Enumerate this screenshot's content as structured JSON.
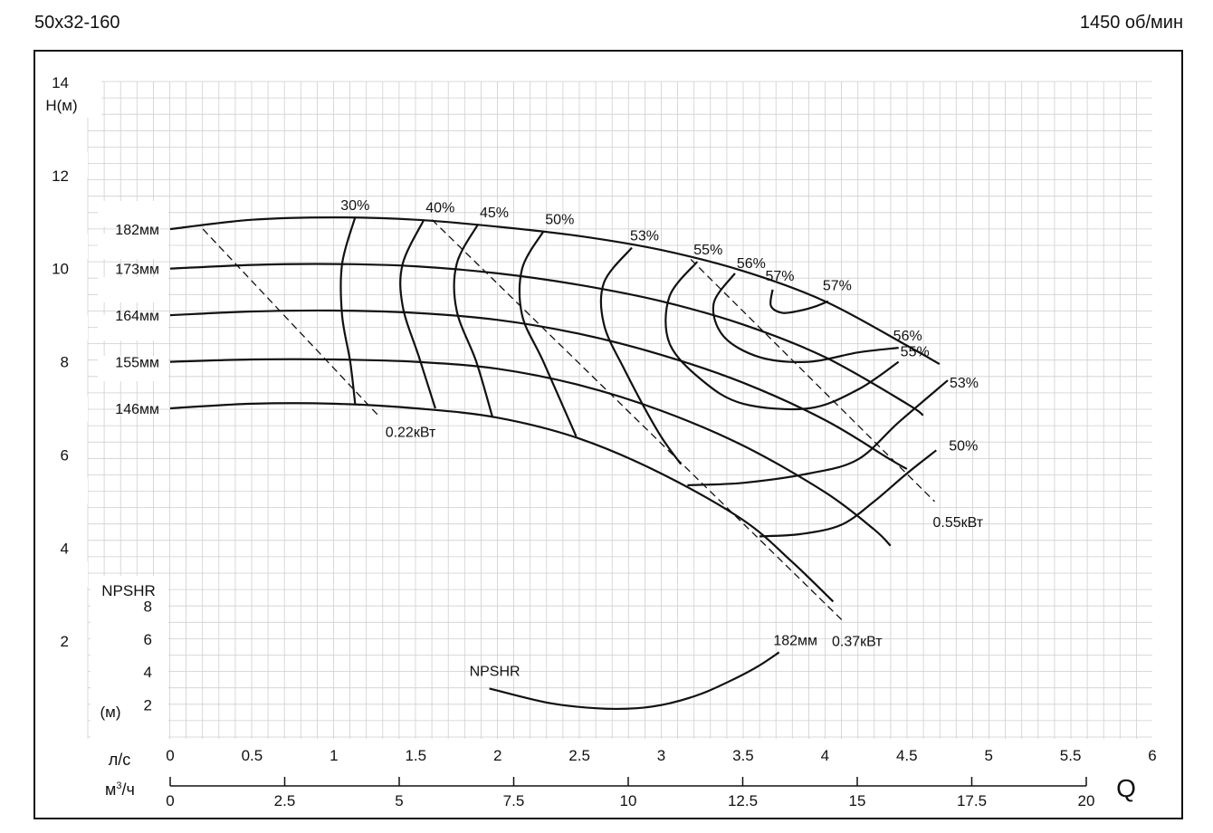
{
  "header": {
    "model": "50x32-160",
    "speed": "1450 об/мин"
  },
  "chart_data": {
    "type": "line",
    "head_axis": {
      "label": "H(м)",
      "range": [
        0,
        14
      ],
      "ticks": [
        "14",
        "12",
        "10",
        "8",
        "6",
        "4",
        "2"
      ],
      "tick_values": [
        14,
        12,
        10,
        8,
        6,
        4,
        2
      ]
    },
    "npshr_axis": {
      "label": "NPSHR",
      "unit": "(м)",
      "ticks": [
        "8",
        "6",
        "4",
        "2"
      ],
      "tick_values": [
        8,
        6,
        4,
        2
      ]
    },
    "flow_axis_ls": {
      "unit": "л/с",
      "range": [
        0,
        6
      ],
      "ticks": [
        "0",
        "0.5",
        "1",
        "1.5",
        "2",
        "2.5",
        "3",
        "3.5",
        "4",
        "4.5",
        "5",
        "5.5",
        "6"
      ],
      "tick_values": [
        0,
        0.5,
        1,
        1.5,
        2,
        2.5,
        3,
        3.5,
        4,
        4.5,
        5,
        5.5,
        6
      ]
    },
    "flow_axis_m3h": {
      "unit_main": "м",
      "unit_sup": "3",
      "unit_tail": "/ч",
      "ticks": [
        "0",
        "2.5",
        "5",
        "7.5",
        "10",
        "12.5",
        "15",
        "17.5",
        "20"
      ],
      "tick_values": [
        0,
        2.5,
        5,
        7.5,
        10,
        12.5,
        15,
        17.5,
        20
      ]
    },
    "q_label": "Q",
    "grid": true,
    "head_curves": [
      {
        "name": "182мм",
        "points": [
          [
            0,
            10.85
          ],
          [
            0.5,
            11.05
          ],
          [
            1,
            11.1
          ],
          [
            1.5,
            11.05
          ],
          [
            2,
            10.9
          ],
          [
            2.5,
            10.7
          ],
          [
            3,
            10.4
          ],
          [
            3.5,
            9.95
          ],
          [
            4,
            9.3
          ],
          [
            4.5,
            8.35
          ],
          [
            4.7,
            7.95
          ]
        ]
      },
      {
        "name": "173мм",
        "points": [
          [
            0,
            10
          ],
          [
            0.5,
            10.08
          ],
          [
            1,
            10.1
          ],
          [
            1.5,
            10.05
          ],
          [
            2,
            9.9
          ],
          [
            2.5,
            9.65
          ],
          [
            3,
            9.3
          ],
          [
            3.5,
            8.8
          ],
          [
            4,
            8.1
          ],
          [
            4.5,
            7.1
          ],
          [
            4.6,
            6.85
          ]
        ]
      },
      {
        "name": "164мм",
        "points": [
          [
            0,
            9
          ],
          [
            0.5,
            9.08
          ],
          [
            1,
            9.1
          ],
          [
            1.5,
            9.05
          ],
          [
            2,
            8.9
          ],
          [
            2.5,
            8.6
          ],
          [
            3,
            8.15
          ],
          [
            3.5,
            7.55
          ],
          [
            4,
            6.75
          ],
          [
            4.4,
            5.9
          ],
          [
            4.5,
            5.7
          ]
        ]
      },
      {
        "name": "155мм",
        "points": [
          [
            0,
            8
          ],
          [
            0.5,
            8.05
          ],
          [
            1,
            8.05
          ],
          [
            1.5,
            8
          ],
          [
            2,
            7.85
          ],
          [
            2.5,
            7.5
          ],
          [
            3,
            6.95
          ],
          [
            3.5,
            6.2
          ],
          [
            4,
            5.2
          ],
          [
            4.3,
            4.4
          ],
          [
            4.4,
            4.05
          ]
        ]
      },
      {
        "name": "146мм",
        "points": [
          [
            0,
            7
          ],
          [
            0.5,
            7.1
          ],
          [
            1,
            7.1
          ],
          [
            1.5,
            7
          ],
          [
            2,
            6.8
          ],
          [
            2.5,
            6.35
          ],
          [
            3,
            5.6
          ],
          [
            3.5,
            4.6
          ],
          [
            3.8,
            3.7
          ],
          [
            4.05,
            2.85
          ]
        ]
      }
    ],
    "efficiency_curves": [
      {
        "name": "30%",
        "points": [
          [
            1.13,
            11.1
          ],
          [
            1.05,
            10.1
          ],
          [
            1.05,
            9
          ],
          [
            1.1,
            8
          ],
          [
            1.13,
            7.1
          ]
        ]
      },
      {
        "name": "40%",
        "points": [
          [
            1.55,
            11.05
          ],
          [
            1.42,
            10.1
          ],
          [
            1.42,
            9.2
          ],
          [
            1.52,
            8.1
          ],
          [
            1.62,
            7.0
          ]
        ]
      },
      {
        "name": "45%",
        "points": [
          [
            1.88,
            10.95
          ],
          [
            1.75,
            10.1
          ],
          [
            1.75,
            9.1
          ],
          [
            1.87,
            8.0
          ],
          [
            1.97,
            6.8
          ]
        ]
      },
      {
        "name": "50%",
        "points": [
          [
            2.28,
            10.8
          ],
          [
            2.15,
            10.0
          ],
          [
            2.15,
            9.0
          ],
          [
            2.28,
            8.0
          ],
          [
            2.48,
            6.4
          ]
        ]
      },
      {
        "name": "53%",
        "points": [
          [
            2.82,
            10.45
          ],
          [
            2.65,
            9.7
          ],
          [
            2.65,
            8.8
          ],
          [
            2.78,
            7.8
          ],
          [
            2.98,
            6.5
          ],
          [
            3.12,
            5.8
          ]
        ]
      },
      {
        "name": "55%",
        "points": [
          [
            3.22,
            10.15
          ],
          [
            3.05,
            9.4
          ],
          [
            3.05,
            8.4
          ],
          [
            3.25,
            7.6
          ],
          [
            3.5,
            7.1
          ],
          [
            3.9,
            7.0
          ],
          [
            4.2,
            7.4
          ],
          [
            4.45,
            8.0
          ]
        ]
      },
      {
        "name": "56%",
        "points": [
          [
            3.45,
            9.9
          ],
          [
            3.32,
            9.25
          ],
          [
            3.38,
            8.55
          ],
          [
            3.6,
            8.1
          ],
          [
            3.9,
            8.0
          ],
          [
            4.2,
            8.2
          ],
          [
            4.45,
            8.3
          ]
        ]
      },
      {
        "name": "57%",
        "points": [
          [
            3.68,
            9.55
          ],
          [
            3.67,
            9.2
          ],
          [
            3.74,
            9.05
          ],
          [
            3.85,
            9.1
          ],
          [
            3.95,
            9.2
          ],
          [
            4.02,
            9.3
          ]
        ]
      },
      {
        "name": "53%",
        "points": [
          [
            3.16,
            5.35
          ],
          [
            3.5,
            5.4
          ],
          [
            3.9,
            5.6
          ],
          [
            4.2,
            5.9
          ],
          [
            4.45,
            6.7
          ],
          [
            4.75,
            7.6
          ]
        ]
      },
      {
        "name": "50%",
        "points": [
          [
            3.6,
            4.25
          ],
          [
            3.85,
            4.3
          ],
          [
            4.1,
            4.5
          ],
          [
            4.3,
            5.0
          ],
          [
            4.5,
            5.6
          ],
          [
            4.68,
            6.1
          ]
        ]
      }
    ],
    "power_lines": [
      {
        "name": "0.22кВт",
        "points": [
          [
            0.2,
            10.85
          ],
          [
            1.27,
            6.85
          ]
        ]
      },
      {
        "name": "0.37кВт",
        "points": [
          [
            1.6,
            11.05
          ],
          [
            4.12,
            2.4
          ]
        ]
      },
      {
        "name": "0.55кВт",
        "points": [
          [
            3.18,
            10.2
          ],
          [
            4.67,
            5.0
          ]
        ]
      }
    ],
    "npshr_curve": {
      "name": "182мм",
      "label": "NPSHR",
      "points": [
        [
          1.95,
          3.0
        ],
        [
          2.3,
          2.15
        ],
        [
          2.6,
          1.8
        ],
        [
          2.85,
          1.8
        ],
        [
          3.05,
          2.1
        ],
        [
          3.25,
          2.7
        ],
        [
          3.45,
          3.6
        ],
        [
          3.6,
          4.4
        ],
        [
          3.72,
          5.2
        ]
      ]
    }
  }
}
